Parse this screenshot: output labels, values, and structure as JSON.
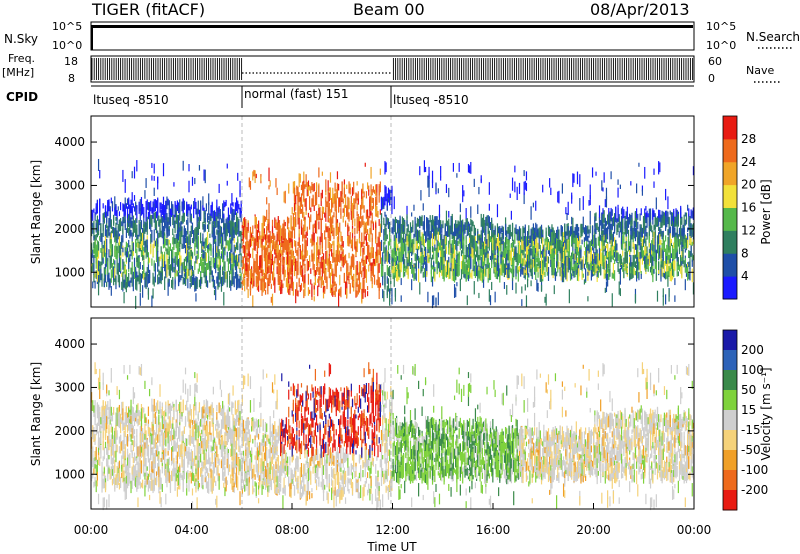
{
  "header": {
    "station": "TIGER (fitACF)",
    "beam": "Beam 00",
    "date": "08/Apr/2013"
  },
  "strip": {
    "nsky_label": "N.Sky",
    "nsky_ticks": [
      "10^5",
      "10^0"
    ],
    "nsearch_label": "N.Search",
    "nsearch_ticks": [
      "10^5",
      "10^0"
    ],
    "freq_label": "Freq.",
    "freq_unit": "[MHz]",
    "freq_ticks": [
      "18",
      "8"
    ],
    "nave_label": "Nave",
    "nave_ticks": [
      "60",
      "0"
    ],
    "cpid_label": "CPID",
    "cpid_segments": [
      {
        "label": "ltuseq -8510",
        "start": 0,
        "end": 6
      },
      {
        "label": "normal (fast) 151",
        "start": 6,
        "end": 12
      },
      {
        "label": "ltuseq -8510",
        "start": 12,
        "end": 24
      }
    ]
  },
  "chart_data": [
    {
      "type": "heatmap",
      "ylabel": "Slant Range [km]",
      "ylim": [
        200,
        4600
      ],
      "y_ticks": [
        1000,
        2000,
        3000,
        4000
      ],
      "xlim": [
        0,
        24
      ],
      "colorbar": {
        "label": "Power [dB]",
        "ticks": [
          "4",
          "8",
          "12",
          "16",
          "20",
          "24",
          "28"
        ],
        "colors": [
          "#1a1aff",
          "#1f4fa8",
          "#2f7f5f",
          "#55b84a",
          "#f2e13a",
          "#f0a528",
          "#ee6a1c",
          "#e81b12"
        ]
      }
    },
    {
      "type": "heatmap",
      "ylabel": "Slant Range [km]",
      "ylim": [
        200,
        4600
      ],
      "y_ticks": [
        1000,
        2000,
        3000,
        4000
      ],
      "xlim": [
        0,
        24
      ],
      "xlabel": "Time UT",
      "x_ticks": [
        "00:00",
        "04:00",
        "08:00",
        "12:00",
        "16:00",
        "20:00",
        "00:00"
      ],
      "colorbar": {
        "label": "Velocity [m s⁻¹]",
        "ticks": [
          "200",
          "100",
          "50",
          "15",
          "-15",
          "-50",
          "-100",
          "-200"
        ],
        "colors": [
          "#1a1aa8",
          "#2d63b8",
          "#3a8a4a",
          "#7fd23c",
          "#cfcfcf",
          "#f5d27a",
          "#f0a028",
          "#ee6a1c",
          "#e81b12"
        ]
      }
    }
  ]
}
